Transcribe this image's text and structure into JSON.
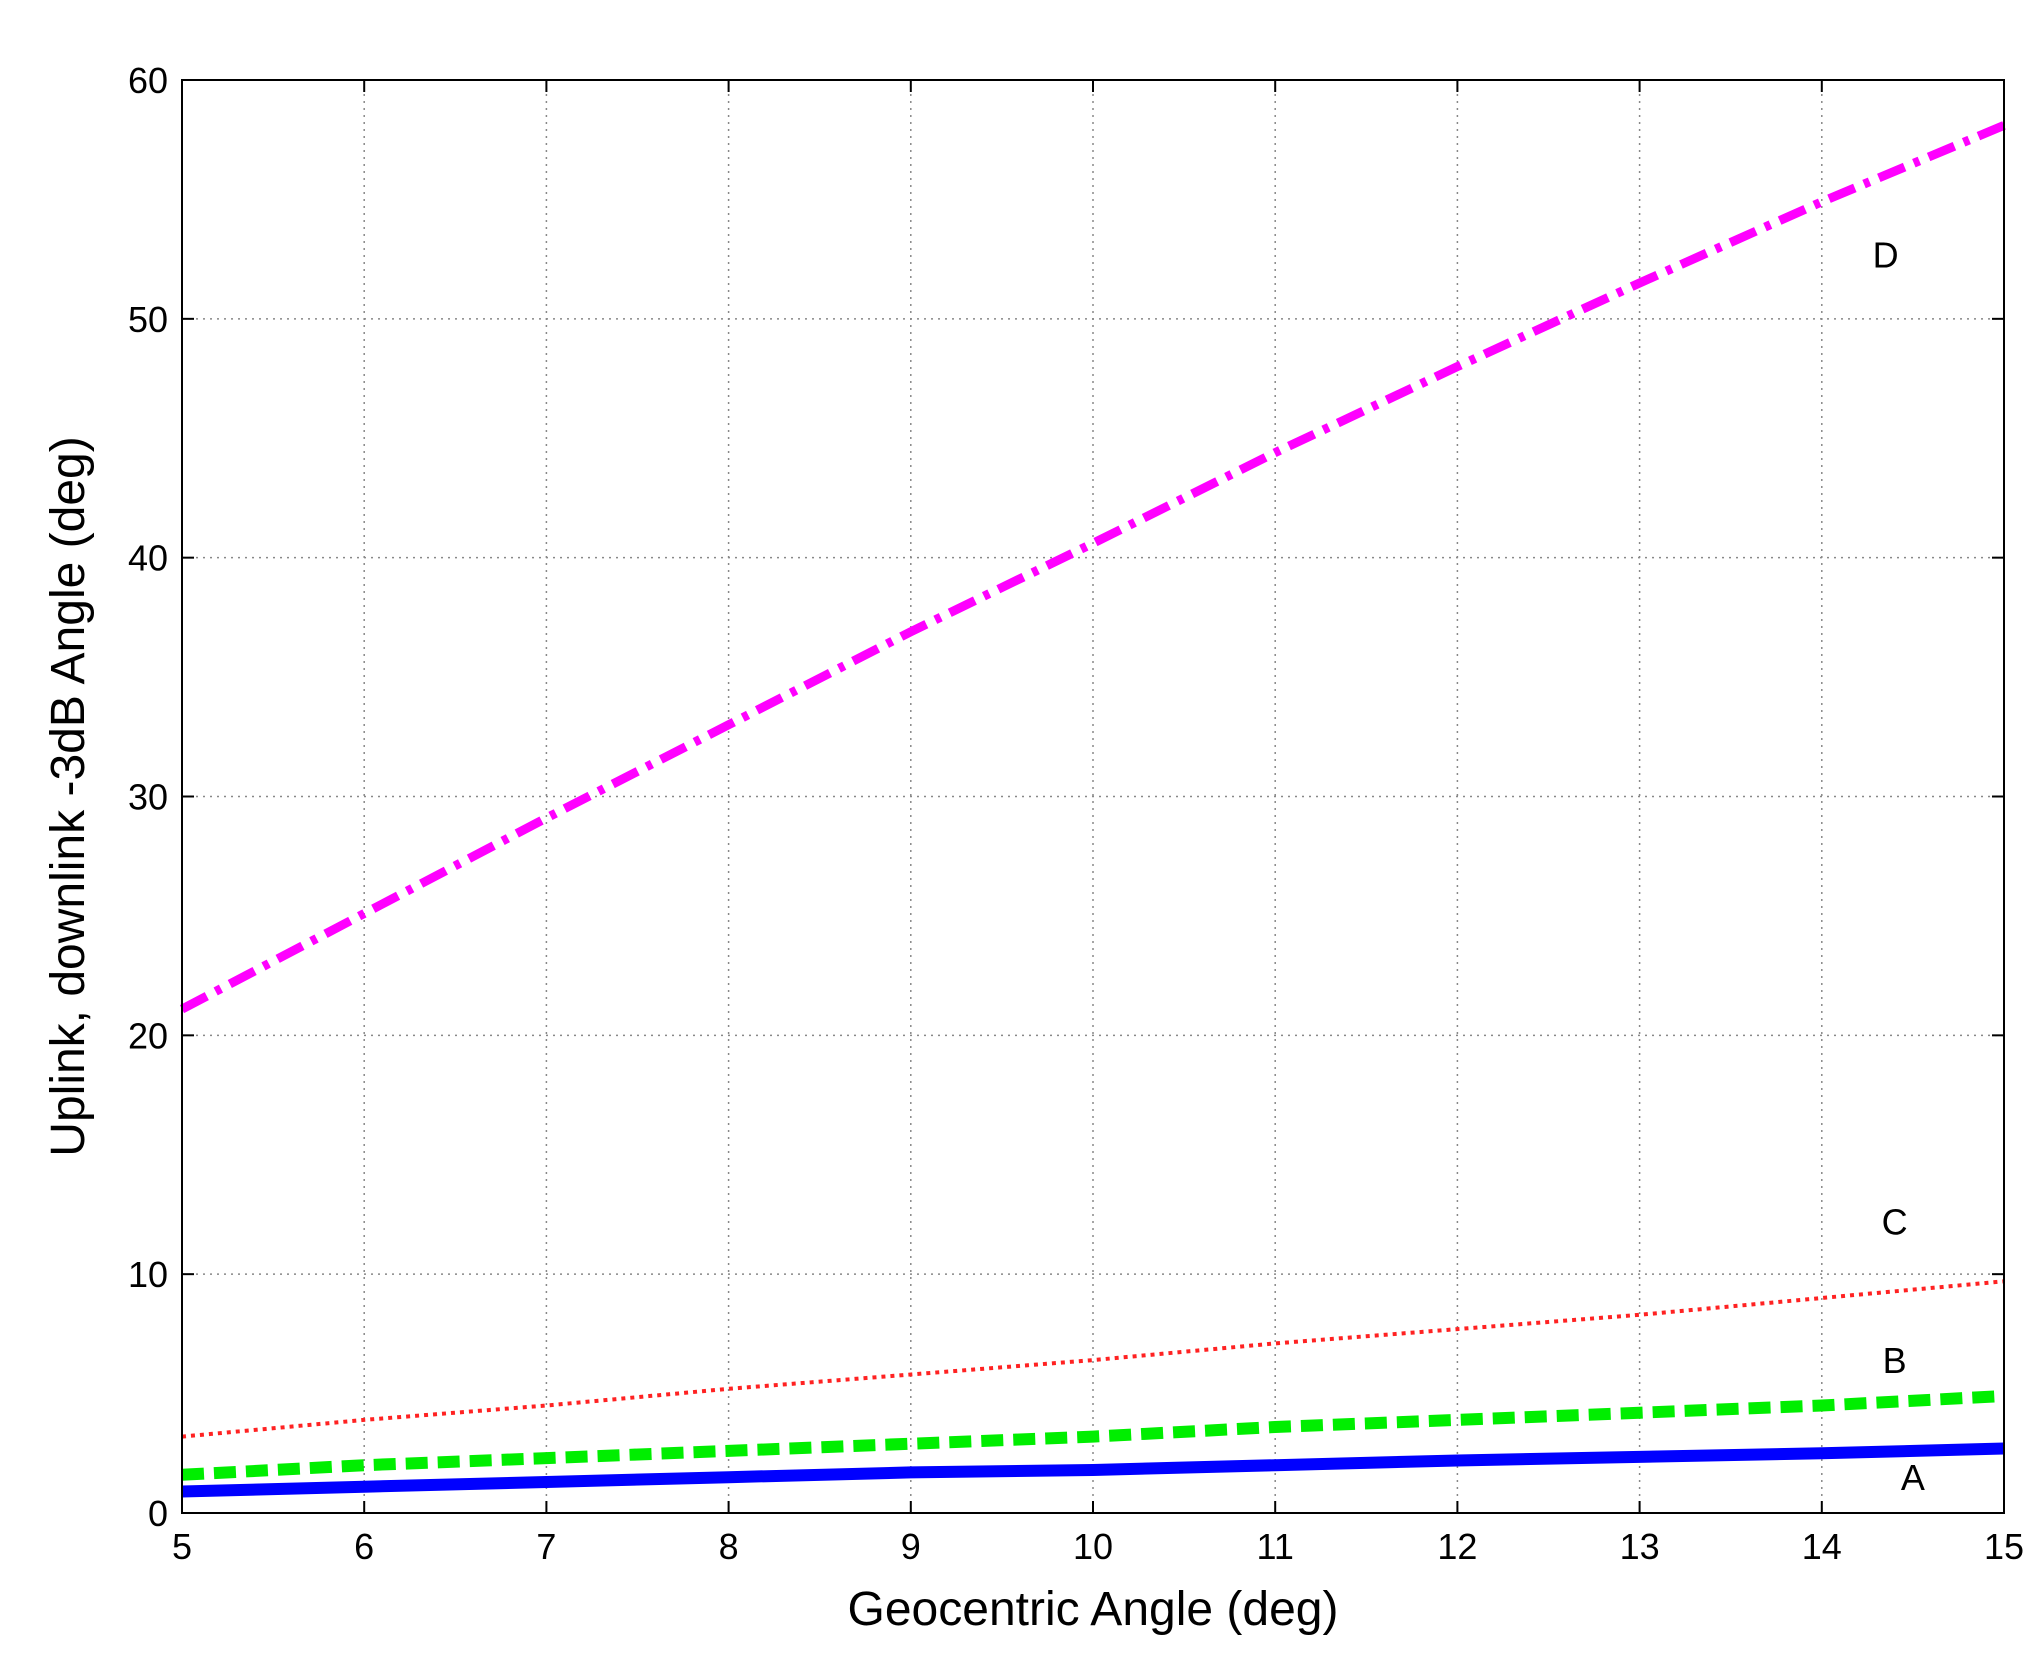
{
  "chart_data": {
    "type": "line",
    "title": "",
    "xlabel": "Geocentric Angle (deg)",
    "ylabel": "Uplink, downlink -3dB Angle (deg)",
    "xlim": [
      5,
      15
    ],
    "ylim": [
      0,
      60
    ],
    "xticks": [
      5,
      6,
      7,
      8,
      9,
      10,
      11,
      12,
      13,
      14,
      15
    ],
    "yticks": [
      0,
      10,
      20,
      30,
      40,
      50,
      60
    ],
    "grid": true,
    "legend": "none",
    "series": [
      {
        "name": "A",
        "color": "#0000ff",
        "style": "solid",
        "x": [
          5,
          6,
          7,
          8,
          9,
          10,
          11,
          12,
          13,
          14,
          15
        ],
        "y": [
          0.9,
          1.1,
          1.3,
          1.5,
          1.7,
          1.8,
          2.0,
          2.2,
          2.35,
          2.5,
          2.7
        ]
      },
      {
        "name": "B",
        "color": "#00ee00",
        "style": "dashed",
        "x": [
          5,
          6,
          7,
          8,
          9,
          10,
          11,
          12,
          13,
          14,
          15
        ],
        "y": [
          1.6,
          2.0,
          2.3,
          2.6,
          2.9,
          3.2,
          3.6,
          3.9,
          4.2,
          4.5,
          4.9
        ]
      },
      {
        "name": "C",
        "color": "#ff2222",
        "style": "dotted",
        "x": [
          5,
          6,
          7,
          8,
          9,
          10,
          11,
          12,
          13,
          14,
          15
        ],
        "y": [
          3.2,
          3.9,
          4.5,
          5.2,
          5.8,
          6.4,
          7.1,
          7.7,
          8.3,
          9.0,
          9.7
        ]
      },
      {
        "name": "D",
        "color": "#ff00ff",
        "style": "dashdot",
        "x": [
          5,
          6,
          7,
          8,
          9,
          10,
          11,
          12,
          13,
          14,
          15
        ],
        "y": [
          21.1,
          25.1,
          29.1,
          33.0,
          36.9,
          40.6,
          44.4,
          48.0,
          51.5,
          54.9,
          58.1
        ]
      }
    ],
    "annotations": [
      {
        "text": "D",
        "x": 14.35,
        "y": 52.7
      },
      {
        "text": "C",
        "x": 14.4,
        "y": 12.2
      },
      {
        "text": "B",
        "x": 14.4,
        "y": 6.4
      },
      {
        "text": "A",
        "x": 14.5,
        "y": 1.5
      }
    ]
  }
}
